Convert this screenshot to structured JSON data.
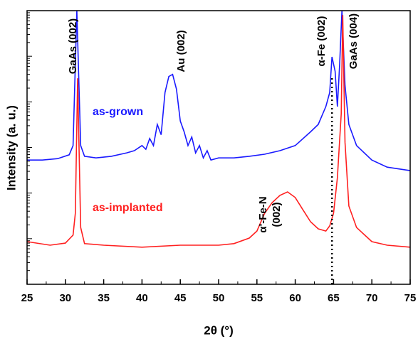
{
  "chart_data": {
    "type": "line",
    "log_y": true,
    "xlabel": "2θ (°)",
    "ylabel": "Intensity (a. u.)",
    "xlim": [
      25,
      75
    ],
    "xticks": [
      25,
      30,
      35,
      40,
      45,
      50,
      55,
      60,
      65,
      70,
      75
    ],
    "ylim": [
      1,
      1000000
    ],
    "reference_line_x": 64.8,
    "annotations": [
      "GaAs (002)",
      "Au (002)",
      "α-Fe (002)",
      "GaAs (004)",
      "α'-Fe-N",
      "(002)"
    ],
    "series": [
      {
        "name": "as-grown",
        "color": "#1a1aff",
        "x": [
          25,
          27,
          29,
          30.5,
          31,
          31.5,
          32,
          32.5,
          34,
          36,
          38,
          39,
          40,
          40.5,
          41,
          41.5,
          42,
          42.5,
          43,
          43.5,
          44,
          44.5,
          45,
          45.5,
          46,
          46.5,
          47,
          47.5,
          48,
          48.5,
          49,
          50,
          52,
          54,
          56,
          58,
          60,
          62,
          63,
          64,
          64.5,
          64.8,
          65.2,
          65.5,
          65.8,
          66.1,
          66.5,
          67,
          68,
          70,
          72,
          75
        ],
        "values": [
          530,
          530,
          570,
          690,
          1100,
          1000000,
          1100,
          640,
          590,
          640,
          760,
          850,
          1100,
          910,
          1570,
          1100,
          3200,
          1900,
          16000,
          36000,
          40000,
          19000,
          3800,
          2200,
          1100,
          1700,
          760,
          1100,
          590,
          850,
          530,
          590,
          590,
          640,
          710,
          850,
          1100,
          2200,
          3200,
          7900,
          16000,
          97000,
          47000,
          7900,
          68000,
          1000000,
          23000,
          3200,
          1100,
          530,
          370,
          310
        ]
      },
      {
        "name": "as-implanted",
        "color": "#ff2020",
        "x": [
          25,
          28,
          30,
          31,
          31.3,
          31.6,
          32,
          32.5,
          35,
          40,
          45,
          50,
          52,
          54,
          55,
          56,
          57,
          58,
          59,
          60,
          61,
          62,
          63,
          64,
          64.5,
          65,
          65.5,
          66,
          66.2,
          66.5,
          67,
          68,
          70,
          72,
          75
        ],
        "values": [
          8.6,
          7.2,
          8,
          12,
          36,
          33000,
          17.6,
          7.8,
          7.2,
          6.5,
          7.2,
          7.2,
          7.8,
          10.3,
          14.7,
          36,
          62,
          89,
          106,
          80,
          43,
          23.5,
          16.4,
          14.7,
          19,
          36,
          217,
          5500,
          800000,
          1300,
          52,
          17.6,
          8.6,
          7.2,
          6.5
        ]
      }
    ]
  }
}
